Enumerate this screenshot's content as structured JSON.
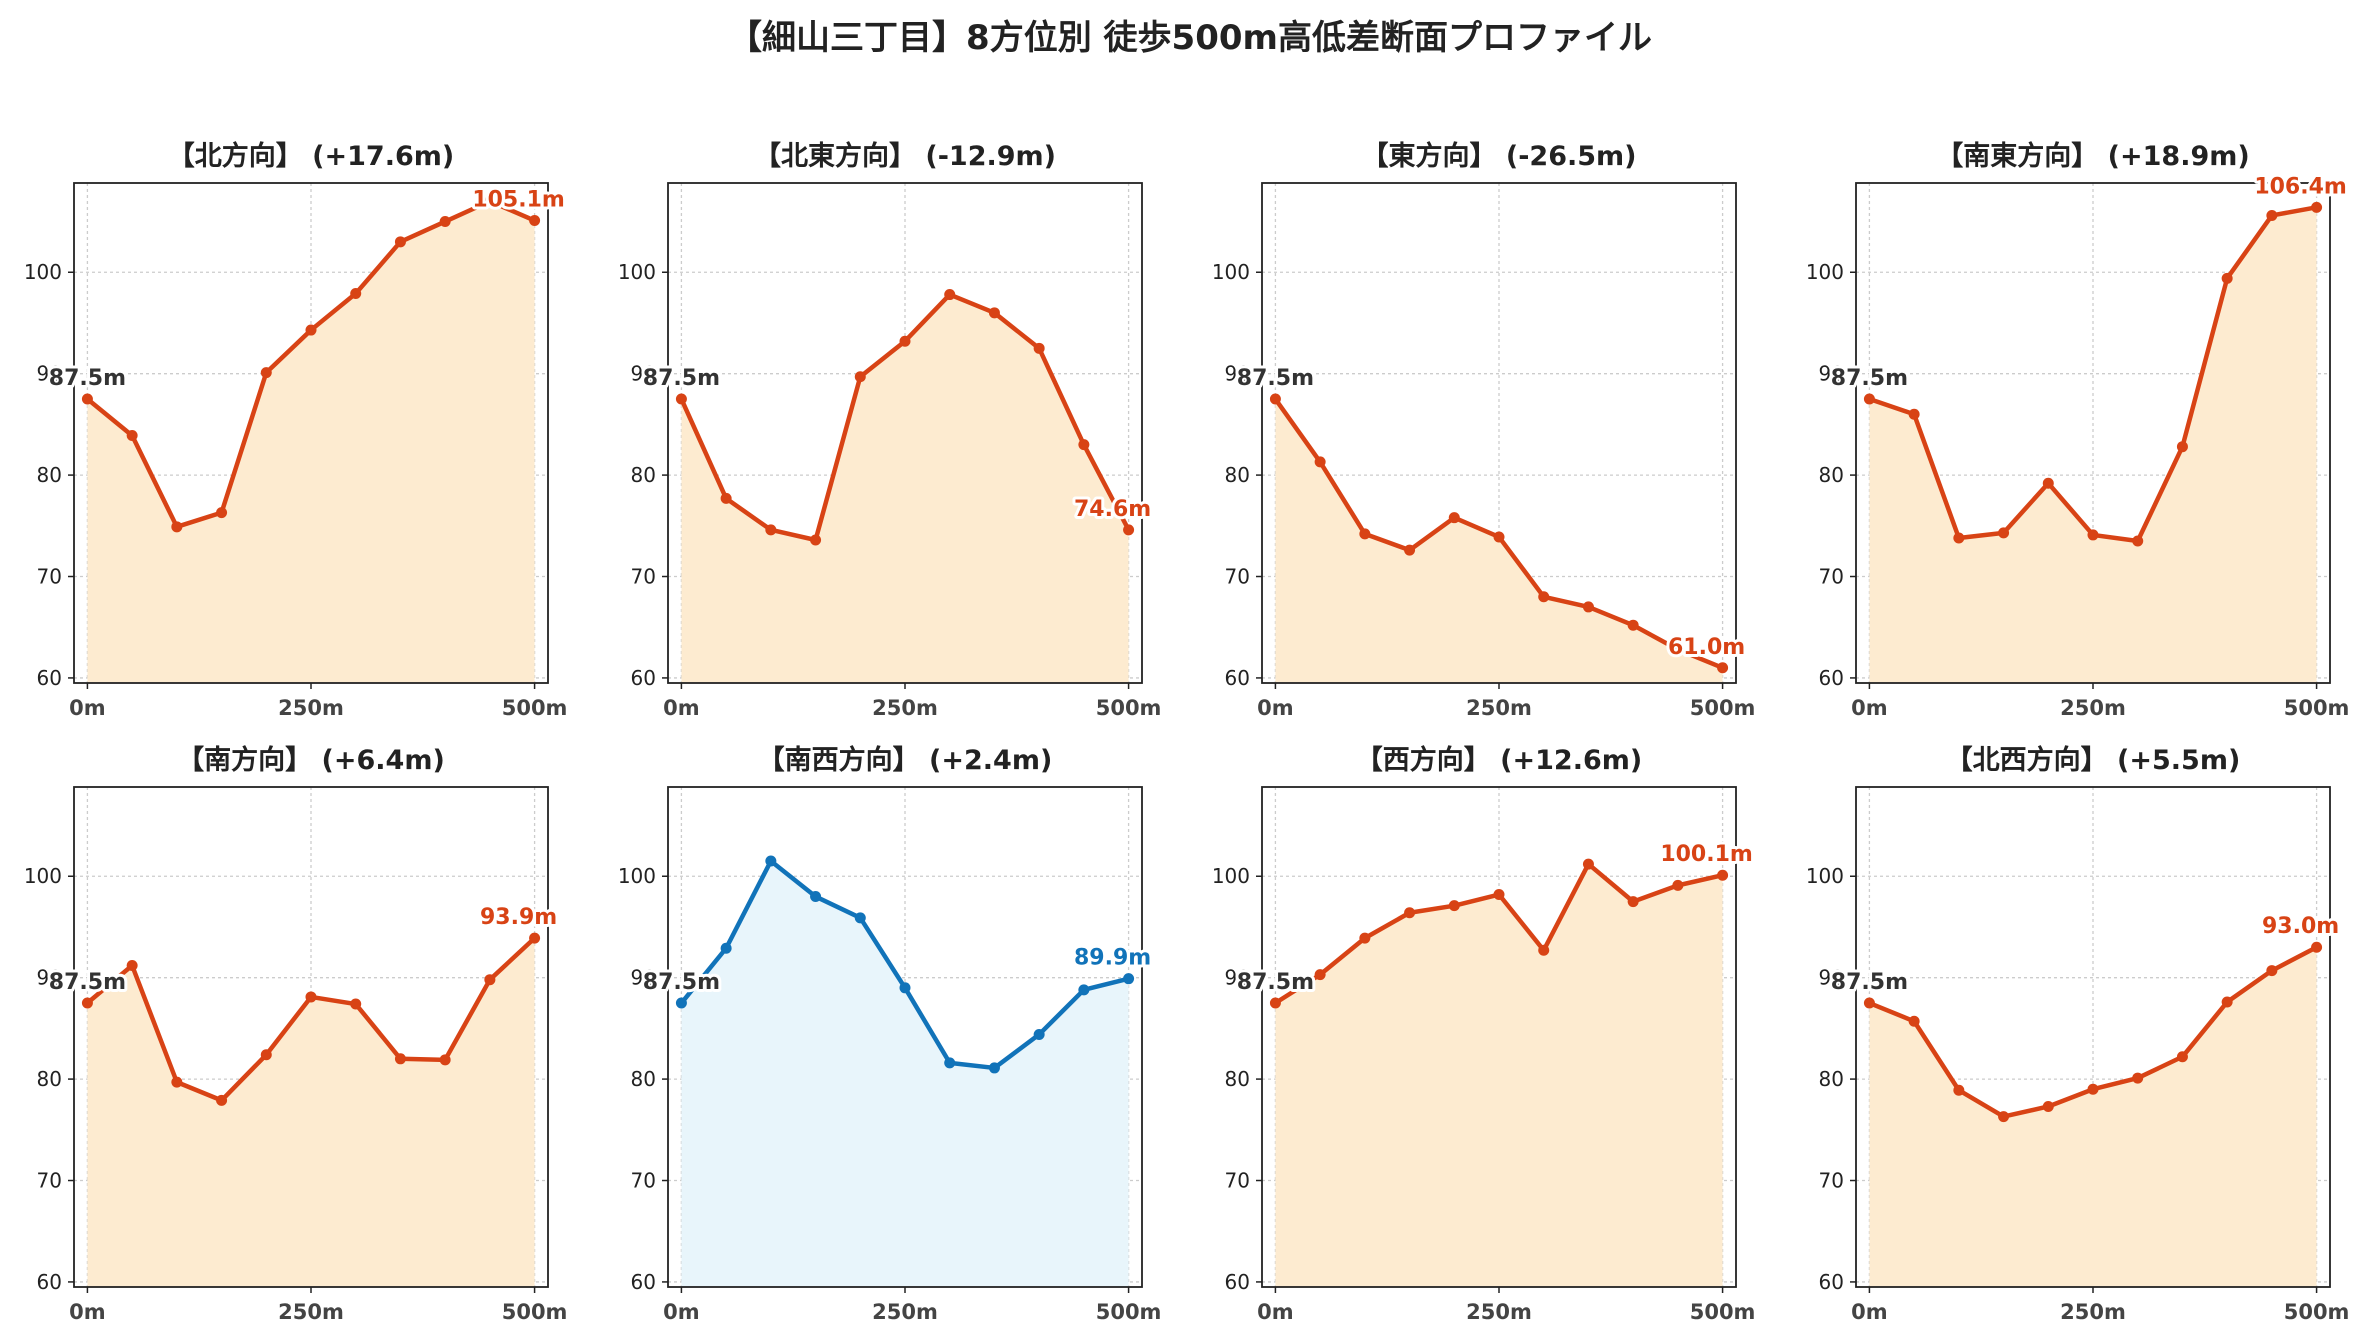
{
  "title": "【細山三丁目】8方位別 徒歩500m高低差断面プロファイル",
  "colors": {
    "uphill_line": "#D84315",
    "uphill_fill": "#FDEBD0",
    "southwest_line": "#1173B9",
    "southwest_fill": "#E8F5FB",
    "start_label": "#333333"
  },
  "chart_data": [
    {
      "type": "area",
      "title": "【北方向】 (+17.6m)",
      "x": [
        0,
        50,
        100,
        150,
        200,
        250,
        300,
        350,
        400,
        450,
        500
      ],
      "y": [
        87.5,
        83.9,
        74.9,
        76.3,
        90.1,
        94.3,
        97.9,
        103.0,
        105.0,
        107.0,
        105.1
      ],
      "xlim": [
        -15,
        515
      ],
      "ylim": [
        59.5,
        108.8
      ],
      "yticks": [
        60,
        70,
        80,
        90,
        100
      ],
      "xticks": [
        "0m",
        "250m",
        "500m"
      ],
      "start_label": "87.5m",
      "end_label": "105.1m",
      "style": "orange",
      "grid": true
    },
    {
      "type": "area",
      "title": "【北東方向】 (-12.9m)",
      "x": [
        0,
        50,
        100,
        150,
        200,
        250,
        300,
        350,
        400,
        450,
        500
      ],
      "y": [
        87.5,
        77.7,
        74.6,
        73.6,
        89.7,
        93.2,
        97.8,
        96.0,
        92.5,
        83.0,
        74.6
      ],
      "xlim": [
        -15,
        515
      ],
      "ylim": [
        59.5,
        108.8
      ],
      "yticks": [
        60,
        70,
        80,
        90,
        100
      ],
      "xticks": [
        "0m",
        "250m",
        "500m"
      ],
      "start_label": "87.5m",
      "end_label": "74.6m",
      "style": "orange",
      "grid": true
    },
    {
      "type": "area",
      "title": "【東方向】 (-26.5m)",
      "x": [
        0,
        50,
        100,
        150,
        200,
        250,
        300,
        350,
        400,
        450,
        500
      ],
      "y": [
        87.5,
        81.3,
        74.2,
        72.6,
        75.8,
        73.9,
        68.0,
        67.0,
        65.2,
        62.8,
        61.0
      ],
      "xlim": [
        -15,
        515
      ],
      "ylim": [
        59.5,
        108.8
      ],
      "yticks": [
        60,
        70,
        80,
        90,
        100
      ],
      "xticks": [
        "0m",
        "250m",
        "500m"
      ],
      "start_label": "87.5m",
      "end_label": "61.0m",
      "style": "orange",
      "grid": true
    },
    {
      "type": "area",
      "title": "【南東方向】 (+18.9m)",
      "x": [
        0,
        50,
        100,
        150,
        200,
        250,
        300,
        350,
        400,
        450,
        500
      ],
      "y": [
        87.5,
        86.0,
        73.8,
        74.3,
        79.2,
        74.1,
        73.5,
        82.8,
        99.4,
        105.6,
        106.4
      ],
      "xlim": [
        -15,
        515
      ],
      "ylim": [
        59.5,
        108.8
      ],
      "yticks": [
        60,
        70,
        80,
        90,
        100
      ],
      "xticks": [
        "0m",
        "250m",
        "500m"
      ],
      "start_label": "87.5m",
      "end_label": "106.4m",
      "style": "orange",
      "grid": true
    },
    {
      "type": "area",
      "title": "【南方向】 (+6.4m)",
      "x": [
        0,
        50,
        100,
        150,
        200,
        250,
        300,
        350,
        400,
        450,
        500
      ],
      "y": [
        87.5,
        91.2,
        79.7,
        77.9,
        82.4,
        88.1,
        87.4,
        82.0,
        81.9,
        89.8,
        93.9
      ],
      "xlim": [
        -15,
        515
      ],
      "ylim": [
        59.5,
        108.8
      ],
      "yticks": [
        60,
        70,
        80,
        90,
        100
      ],
      "xticks": [
        "0m",
        "250m",
        "500m"
      ],
      "start_label": "87.5m",
      "end_label": "93.9m",
      "style": "orange",
      "grid": true
    },
    {
      "type": "area",
      "title": "【南西方向】 (+2.4m)",
      "x": [
        0,
        50,
        100,
        150,
        200,
        250,
        300,
        350,
        400,
        450,
        500
      ],
      "y": [
        87.5,
        92.9,
        101.5,
        98.0,
        95.9,
        89.0,
        81.6,
        81.1,
        84.4,
        88.8,
        89.9
      ],
      "xlim": [
        -15,
        515
      ],
      "ylim": [
        59.5,
        108.8
      ],
      "yticks": [
        60,
        70,
        80,
        90,
        100
      ],
      "xticks": [
        "0m",
        "250m",
        "500m"
      ],
      "start_label": "87.5m",
      "end_label": "89.9m",
      "style": "blue",
      "grid": true
    },
    {
      "type": "area",
      "title": "【西方向】 (+12.6m)",
      "x": [
        0,
        50,
        100,
        150,
        200,
        250,
        300,
        350,
        400,
        450,
        500
      ],
      "y": [
        87.5,
        90.3,
        93.9,
        96.4,
        97.1,
        98.2,
        92.7,
        101.2,
        97.5,
        99.1,
        100.1
      ],
      "xlim": [
        -15,
        515
      ],
      "ylim": [
        59.5,
        108.8
      ],
      "yticks": [
        60,
        70,
        80,
        90,
        100
      ],
      "xticks": [
        "0m",
        "250m",
        "500m"
      ],
      "start_label": "87.5m",
      "end_label": "100.1m",
      "style": "orange",
      "grid": true
    },
    {
      "type": "area",
      "title": "【北西方向】 (+5.5m)",
      "x": [
        0,
        50,
        100,
        150,
        200,
        250,
        300,
        350,
        400,
        450,
        500
      ],
      "y": [
        87.5,
        85.7,
        78.9,
        76.3,
        77.3,
        79.0,
        80.1,
        82.2,
        87.6,
        90.7,
        93.0
      ],
      "xlim": [
        -15,
        515
      ],
      "ylim": [
        59.5,
        108.8
      ],
      "yticks": [
        60,
        70,
        80,
        90,
        100
      ],
      "xticks": [
        "0m",
        "250m",
        "500m"
      ],
      "start_label": "87.5m",
      "end_label": "93.0m",
      "style": "orange",
      "grid": true
    }
  ]
}
